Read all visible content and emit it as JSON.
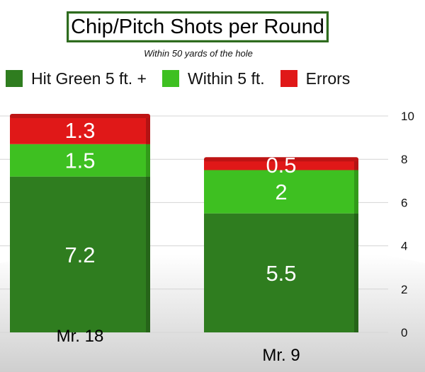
{
  "title": "Chip/Pitch Shots per Round",
  "subtitle": "Within 50 yards of the hole",
  "chart_data": {
    "type": "bar",
    "stacked": true,
    "title": "Chip/Pitch Shots per Round",
    "subtitle": "Within 50 yards of the hole",
    "categories": [
      "Mr. 18",
      "Mr. 9"
    ],
    "series": [
      {
        "name": "Hit Green 5 ft. +",
        "values": [
          7.2,
          5.5
        ],
        "color": "#2f7d1f"
      },
      {
        "name": "Within 5 ft.",
        "values": [
          1.5,
          2
        ],
        "color": "#3ec021"
      },
      {
        "name": "Errors",
        "values": [
          1.3,
          0.5
        ],
        "color": "#e01818"
      }
    ],
    "ylim": [
      0,
      10
    ],
    "yticks": [
      0,
      2,
      4,
      6,
      8,
      10
    ],
    "grid": true,
    "legend_position": "top",
    "xlabel": "",
    "ylabel": ""
  }
}
